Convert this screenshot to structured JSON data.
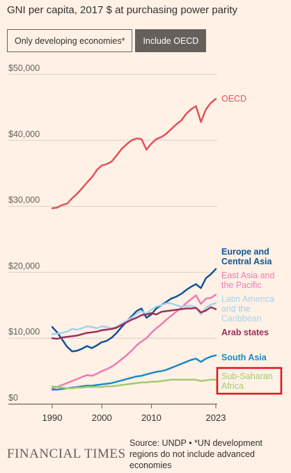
{
  "title": "GNI per capita, 2017 $ at purchasing power parity",
  "toggle": {
    "option_1": "Only developing economies*",
    "option_2": "Include OECD",
    "selected": "Include OECD"
  },
  "footer": {
    "brand": "FINANCIAL TIMES",
    "source": "Source: UNDP • *UN development regions do not include advanced economies"
  },
  "colors": {
    "background": "#fff1e5",
    "highlight_box": "#e0101e"
  },
  "chart_data": {
    "type": "line",
    "title": "GNI per capita, 2017 $ at purchasing power parity",
    "xlabel": "",
    "ylabel": "",
    "xlim": [
      1990,
      2023
    ],
    "ylim": [
      0,
      50000
    ],
    "x_ticks": [
      "1990",
      "2000",
      "2010",
      "2023"
    ],
    "y_ticks": [
      "$50,000",
      "$40,000",
      "$30,000",
      "$20,000",
      "$10,000",
      "$0"
    ],
    "y_tick_values": [
      50000,
      40000,
      30000,
      20000,
      10000,
      0
    ],
    "grid": "horizontal",
    "legend": "direct labels at line ends",
    "highlighted_series": "Sub-Saharan Africa",
    "series": [
      {
        "name": "OECD",
        "label_lines": [
          "OECD"
        ],
        "color": "#e0505b",
        "points": [
          [
            1990,
            29700
          ],
          [
            1991,
            29800
          ],
          [
            1992,
            30200
          ],
          [
            1993,
            30400
          ],
          [
            1994,
            31200
          ],
          [
            1995,
            31900
          ],
          [
            1996,
            32700
          ],
          [
            1997,
            33600
          ],
          [
            1998,
            34400
          ],
          [
            1999,
            35500
          ],
          [
            2000,
            36200
          ],
          [
            2001,
            36400
          ],
          [
            2002,
            36800
          ],
          [
            2003,
            37700
          ],
          [
            2004,
            38700
          ],
          [
            2005,
            39400
          ],
          [
            2006,
            40000
          ],
          [
            2007,
            40300
          ],
          [
            2008,
            40200
          ],
          [
            2009,
            38600
          ],
          [
            2010,
            39500
          ],
          [
            2011,
            40200
          ],
          [
            2012,
            40500
          ],
          [
            2013,
            41000
          ],
          [
            2014,
            41700
          ],
          [
            2015,
            42400
          ],
          [
            2016,
            43000
          ],
          [
            2017,
            44000
          ],
          [
            2018,
            44700
          ],
          [
            2019,
            45200
          ],
          [
            2020,
            42800
          ],
          [
            2021,
            44700
          ],
          [
            2022,
            45700
          ],
          [
            2023,
            46300
          ]
        ]
      },
      {
        "name": "Europe and Central Asia",
        "label_lines": [
          "Europe and",
          "Central Asia"
        ],
        "color": "#0f5499",
        "points": [
          [
            1990,
            11700
          ],
          [
            1991,
            10900
          ],
          [
            1992,
            9800
          ],
          [
            1993,
            8700
          ],
          [
            1994,
            8000
          ],
          [
            1995,
            8100
          ],
          [
            1996,
            8400
          ],
          [
            1997,
            8800
          ],
          [
            1998,
            8500
          ],
          [
            1999,
            8900
          ],
          [
            2000,
            9400
          ],
          [
            2001,
            9600
          ],
          [
            2002,
            10100
          ],
          [
            2003,
            10800
          ],
          [
            2004,
            11700
          ],
          [
            2005,
            12500
          ],
          [
            2006,
            13300
          ],
          [
            2007,
            14100
          ],
          [
            2008,
            14500
          ],
          [
            2009,
            13100
          ],
          [
            2010,
            13600
          ],
          [
            2011,
            14500
          ],
          [
            2012,
            15000
          ],
          [
            2013,
            15500
          ],
          [
            2014,
            16000
          ],
          [
            2015,
            16300
          ],
          [
            2016,
            16700
          ],
          [
            2017,
            17300
          ],
          [
            2018,
            17800
          ],
          [
            2019,
            18200
          ],
          [
            2020,
            17600
          ],
          [
            2021,
            19100
          ],
          [
            2022,
            19700
          ],
          [
            2023,
            20500
          ]
        ]
      },
      {
        "name": "East Asia and the Pacific",
        "label_lines": [
          "East Asia and",
          "the Pacific"
        ],
        "color": "#ed7ab4",
        "points": [
          [
            1990,
            2400
          ],
          [
            1991,
            2600
          ],
          [
            1992,
            2900
          ],
          [
            1993,
            3200
          ],
          [
            1994,
            3500
          ],
          [
            1995,
            3800
          ],
          [
            1996,
            4100
          ],
          [
            1997,
            4400
          ],
          [
            1998,
            4300
          ],
          [
            1999,
            4600
          ],
          [
            2000,
            5000
          ],
          [
            2001,
            5300
          ],
          [
            2002,
            5700
          ],
          [
            2003,
            6200
          ],
          [
            2004,
            6800
          ],
          [
            2005,
            7400
          ],
          [
            2006,
            8100
          ],
          [
            2007,
            8900
          ],
          [
            2008,
            9500
          ],
          [
            2009,
            10000
          ],
          [
            2010,
            10800
          ],
          [
            2011,
            11500
          ],
          [
            2012,
            12100
          ],
          [
            2013,
            12800
          ],
          [
            2014,
            13400
          ],
          [
            2015,
            14000
          ],
          [
            2016,
            14600
          ],
          [
            2017,
            15300
          ],
          [
            2018,
            15900
          ],
          [
            2019,
            16500
          ],
          [
            2020,
            15200
          ],
          [
            2021,
            16000
          ],
          [
            2022,
            16100
          ],
          [
            2023,
            16600
          ]
        ]
      },
      {
        "name": "Latin America and the Caribbean",
        "label_lines": [
          "Latin America",
          "and the",
          "Caribbean"
        ],
        "color": "#a7d2ea",
        "points": [
          [
            1990,
            10600
          ],
          [
            1991,
            10700
          ],
          [
            1992,
            10800
          ],
          [
            1993,
            11000
          ],
          [
            1994,
            11400
          ],
          [
            1995,
            11300
          ],
          [
            1996,
            11500
          ],
          [
            1997,
            11800
          ],
          [
            1998,
            11700
          ],
          [
            1999,
            11500
          ],
          [
            2000,
            11800
          ],
          [
            2001,
            11700
          ],
          [
            2002,
            11500
          ],
          [
            2003,
            11700
          ],
          [
            2004,
            12200
          ],
          [
            2005,
            12600
          ],
          [
            2006,
            13100
          ],
          [
            2007,
            13700
          ],
          [
            2008,
            14100
          ],
          [
            2009,
            13700
          ],
          [
            2010,
            14300
          ],
          [
            2011,
            14800
          ],
          [
            2012,
            15000
          ],
          [
            2013,
            15300
          ],
          [
            2014,
            15300
          ],
          [
            2015,
            15000
          ],
          [
            2016,
            14800
          ],
          [
            2017,
            14900
          ],
          [
            2018,
            14900
          ],
          [
            2019,
            14700
          ],
          [
            2020,
            13600
          ],
          [
            2021,
            14600
          ],
          [
            2022,
            15100
          ],
          [
            2023,
            15300
          ]
        ]
      },
      {
        "name": "Arab states",
        "label_lines": [
          "Arab states"
        ],
        "color": "#9b2f5d",
        "points": [
          [
            1990,
            10000
          ],
          [
            1991,
            9900
          ],
          [
            1992,
            10100
          ],
          [
            1993,
            10200
          ],
          [
            1994,
            10300
          ],
          [
            1995,
            10400
          ],
          [
            1996,
            10600
          ],
          [
            1997,
            10800
          ],
          [
            1998,
            10900
          ],
          [
            1999,
            11000
          ],
          [
            2000,
            11200
          ],
          [
            2001,
            11300
          ],
          [
            2002,
            11400
          ],
          [
            2003,
            11600
          ],
          [
            2004,
            12000
          ],
          [
            2005,
            12400
          ],
          [
            2006,
            12800
          ],
          [
            2007,
            13100
          ],
          [
            2008,
            13500
          ],
          [
            2009,
            13600
          ],
          [
            2010,
            13800
          ],
          [
            2011,
            13600
          ],
          [
            2012,
            14000
          ],
          [
            2013,
            14100
          ],
          [
            2014,
            14200
          ],
          [
            2015,
            14300
          ],
          [
            2016,
            14400
          ],
          [
            2017,
            14500
          ],
          [
            2018,
            14500
          ],
          [
            2019,
            14600
          ],
          [
            2020,
            13900
          ],
          [
            2021,
            14200
          ],
          [
            2022,
            14700
          ],
          [
            2023,
            14400
          ]
        ]
      },
      {
        "name": "South Asia",
        "label_lines": [
          "South Asia"
        ],
        "color": "#1b8ac4",
        "points": [
          [
            1990,
            2200
          ],
          [
            1991,
            2200
          ],
          [
            1992,
            2300
          ],
          [
            1993,
            2400
          ],
          [
            1994,
            2500
          ],
          [
            1995,
            2600
          ],
          [
            1996,
            2700
          ],
          [
            1997,
            2800
          ],
          [
            1998,
            2800
          ],
          [
            1999,
            2900
          ],
          [
            2000,
            3000
          ],
          [
            2001,
            3100
          ],
          [
            2002,
            3200
          ],
          [
            2003,
            3400
          ],
          [
            2004,
            3600
          ],
          [
            2005,
            3800
          ],
          [
            2006,
            4000
          ],
          [
            2007,
            4200
          ],
          [
            2008,
            4300
          ],
          [
            2009,
            4500
          ],
          [
            2010,
            4700
          ],
          [
            2011,
            4900
          ],
          [
            2012,
            5000
          ],
          [
            2013,
            5200
          ],
          [
            2014,
            5500
          ],
          [
            2015,
            5800
          ],
          [
            2016,
            6100
          ],
          [
            2017,
            6400
          ],
          [
            2018,
            6700
          ],
          [
            2019,
            6900
          ],
          [
            2020,
            6400
          ],
          [
            2021,
            6900
          ],
          [
            2022,
            7200
          ],
          [
            2023,
            7400
          ]
        ]
      },
      {
        "name": "Sub-Saharan Africa",
        "label_lines": [
          "Sub-Saharan",
          "Africa"
        ],
        "color": "#a4c971",
        "points": [
          [
            1990,
            2700
          ],
          [
            1991,
            2600
          ],
          [
            1992,
            2500
          ],
          [
            1993,
            2400
          ],
          [
            1994,
            2400
          ],
          [
            1995,
            2500
          ],
          [
            1996,
            2500
          ],
          [
            1997,
            2600
          ],
          [
            1998,
            2600
          ],
          [
            1999,
            2600
          ],
          [
            2000,
            2600
          ],
          [
            2001,
            2700
          ],
          [
            2002,
            2700
          ],
          [
            2003,
            2800
          ],
          [
            2004,
            2900
          ],
          [
            2005,
            3000
          ],
          [
            2006,
            3100
          ],
          [
            2007,
            3200
          ],
          [
            2008,
            3300
          ],
          [
            2009,
            3300
          ],
          [
            2010,
            3400
          ],
          [
            2011,
            3400
          ],
          [
            2012,
            3500
          ],
          [
            2013,
            3600
          ],
          [
            2014,
            3700
          ],
          [
            2015,
            3700
          ],
          [
            2016,
            3700
          ],
          [
            2017,
            3700
          ],
          [
            2018,
            3700
          ],
          [
            2019,
            3700
          ],
          [
            2020,
            3500
          ],
          [
            2021,
            3600
          ],
          [
            2022,
            3700
          ],
          [
            2023,
            3700
          ]
        ]
      }
    ]
  }
}
